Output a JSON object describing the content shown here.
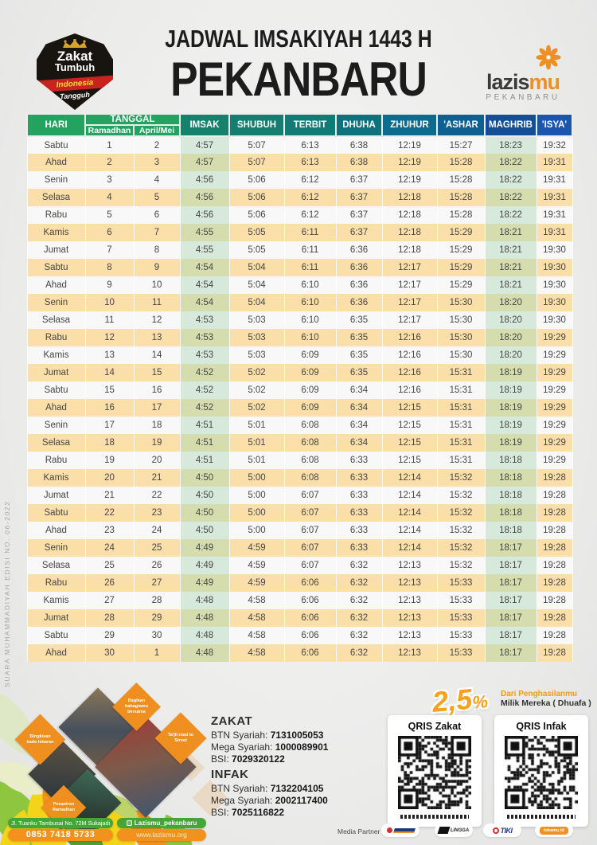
{
  "colors": {
    "header_green": "#23a35f",
    "teal": "#15806f",
    "blue": "#1b55ae",
    "row_peach": "#fbdfa9",
    "tint_green": "#d7e9da",
    "accent_orange": "#f2921d",
    "pill_green": "#44a636"
  },
  "header": {
    "title_line1": "JADWAL IMSAKIYAH 1443 H",
    "title_line2": "PEKANBARU",
    "zakat_badge": {
      "line1": "Zakat",
      "line2": "Tumbuh",
      "ribbon": "Indonesia",
      "line3": "Tangguh"
    },
    "lazismu": {
      "brand_dark": "lazis",
      "brand_orange": "mu",
      "city": "PEKANBARU"
    }
  },
  "table": {
    "col_hari": "HARI",
    "col_tanggal": "TANGGAL",
    "col_ramadhan": "Ramadhan",
    "col_april": "April/Mei",
    "cols_prayer": [
      "IMSAK",
      "SHUBUH",
      "TERBIT",
      "DHUHA",
      "ZHUHUR",
      "'ASHAR",
      "MAGHRIB",
      "'ISYA'"
    ],
    "rows": [
      [
        "Sabtu",
        "1",
        "2",
        "4:57",
        "5:07",
        "6:13",
        "6:38",
        "12:19",
        "15:27",
        "18:23",
        "19:32"
      ],
      [
        "Ahad",
        "2",
        "3",
        "4:57",
        "5:07",
        "6:13",
        "6:38",
        "12:19",
        "15:28",
        "18:22",
        "19:31"
      ],
      [
        "Senin",
        "3",
        "4",
        "4:56",
        "5:06",
        "6:12",
        "6:37",
        "12:19",
        "15:28",
        "18:22",
        "19:31"
      ],
      [
        "Selasa",
        "4",
        "5",
        "4:56",
        "5:06",
        "6:12",
        "6:37",
        "12:18",
        "15:28",
        "18:22",
        "19:31"
      ],
      [
        "Rabu",
        "5",
        "6",
        "4:56",
        "5:06",
        "6:12",
        "6:37",
        "12:18",
        "15:28",
        "18:22",
        "19:31"
      ],
      [
        "Kamis",
        "6",
        "7",
        "4:55",
        "5:05",
        "6:11",
        "6:37",
        "12:18",
        "15:29",
        "18:21",
        "19:31"
      ],
      [
        "Jumat",
        "7",
        "8",
        "4:55",
        "5:05",
        "6:11",
        "6:36",
        "12:18",
        "15:29",
        "18:21",
        "19:30"
      ],
      [
        "Sabtu",
        "8",
        "9",
        "4:54",
        "5:04",
        "6:11",
        "6:36",
        "12:17",
        "15:29",
        "18:21",
        "19:30"
      ],
      [
        "Ahad",
        "9",
        "10",
        "4:54",
        "5:04",
        "6:10",
        "6:36",
        "12:17",
        "15:29",
        "18:21",
        "19:30"
      ],
      [
        "Senin",
        "10",
        "11",
        "4:54",
        "5:04",
        "6:10",
        "6:36",
        "12:17",
        "15:30",
        "18:20",
        "19:30"
      ],
      [
        "Selasa",
        "11",
        "12",
        "4:53",
        "5:03",
        "6:10",
        "6:35",
        "12:17",
        "15:30",
        "18:20",
        "19:30"
      ],
      [
        "Rabu",
        "12",
        "13",
        "4:53",
        "5:03",
        "6:10",
        "6:35",
        "12:16",
        "15:30",
        "18:20",
        "19:29"
      ],
      [
        "Kamis",
        "13",
        "14",
        "4:53",
        "5:03",
        "6:09",
        "6:35",
        "12:16",
        "15:30",
        "18:20",
        "19:29"
      ],
      [
        "Jumat",
        "14",
        "15",
        "4:52",
        "5:02",
        "6:09",
        "6:35",
        "12:16",
        "15:31",
        "18:19",
        "19:29"
      ],
      [
        "Sabtu",
        "15",
        "16",
        "4:52",
        "5:02",
        "6:09",
        "6:34",
        "12:16",
        "15:31",
        "18:19",
        "19:29"
      ],
      [
        "Ahad",
        "16",
        "17",
        "4:52",
        "5:02",
        "6:09",
        "6:34",
        "12:15",
        "15:31",
        "18:19",
        "19:29"
      ],
      [
        "Senin",
        "17",
        "18",
        "4:51",
        "5:01",
        "6:08",
        "6:34",
        "12:15",
        "15:31",
        "18:19",
        "19:29"
      ],
      [
        "Selasa",
        "18",
        "19",
        "4:51",
        "5:01",
        "6:08",
        "6:34",
        "12:15",
        "15:31",
        "18:19",
        "19:29"
      ],
      [
        "Rabu",
        "19",
        "20",
        "4:51",
        "5:01",
        "6:08",
        "6:33",
        "12:15",
        "15:31",
        "18:18",
        "19:29"
      ],
      [
        "Kamis",
        "20",
        "21",
        "4:50",
        "5:00",
        "6:08",
        "6:33",
        "12:14",
        "15:32",
        "18:18",
        "19:28"
      ],
      [
        "Jumat",
        "21",
        "22",
        "4:50",
        "5:00",
        "6:07",
        "6:33",
        "12:14",
        "15:32",
        "18:18",
        "19:28"
      ],
      [
        "Sabtu",
        "22",
        "23",
        "4:50",
        "5:00",
        "6:07",
        "6:33",
        "12:14",
        "15:32",
        "18:18",
        "19:28"
      ],
      [
        "Ahad",
        "23",
        "24",
        "4:50",
        "5:00",
        "6:07",
        "6:33",
        "12:14",
        "15:32",
        "18:18",
        "19:28"
      ],
      [
        "Senin",
        "24",
        "25",
        "4:49",
        "4:59",
        "6:07",
        "6:33",
        "12:14",
        "15:32",
        "18:17",
        "19:28"
      ],
      [
        "Selasa",
        "25",
        "26",
        "4:49",
        "4:59",
        "6:07",
        "6:32",
        "12:13",
        "15:32",
        "18:17",
        "19:28"
      ],
      [
        "Rabu",
        "26",
        "27",
        "4:49",
        "4:59",
        "6:06",
        "6:32",
        "12:13",
        "15:33",
        "18:17",
        "19:28"
      ],
      [
        "Kamis",
        "27",
        "28",
        "4:48",
        "4:58",
        "6:06",
        "6:32",
        "12:13",
        "15:33",
        "18:17",
        "19:28"
      ],
      [
        "Jumat",
        "28",
        "29",
        "4:48",
        "4:58",
        "6:06",
        "6:32",
        "12:13",
        "15:33",
        "18:17",
        "19:28"
      ],
      [
        "Sabtu",
        "29",
        "30",
        "4:48",
        "4:58",
        "6:06",
        "6:32",
        "12:13",
        "15:33",
        "18:17",
        "19:28"
      ],
      [
        "Ahad",
        "30",
        "1",
        "4:48",
        "4:58",
        "6:06",
        "6:32",
        "12:13",
        "15:33",
        "18:17",
        "19:28"
      ]
    ]
  },
  "side_text": "SUARA MUHAMMADIYAH EDISI NO. 06-2022",
  "footer": {
    "program_labels": [
      "Bingkisan kado lebaran",
      "Bagikan bahagiamu bersama",
      "Ta'jil road to Street",
      "Pesantren Ramadhan"
    ],
    "address": "Jl. Tuanku Tambusai No. 72M Sukajadi",
    "phone": "0853 7418 5733",
    "instagram": "Lazismu_pekanbaru",
    "website": "www.lazismu.org",
    "zakat": {
      "title": "ZAKAT",
      "btn_label": "BTN Syariah: ",
      "btn": "7131005053",
      "mega_label": "Mega Syariah: ",
      "mega": "1000089901",
      "bsi_label": "BSI: ",
      "bsi": "7029320122"
    },
    "infak": {
      "title": "INFAK",
      "btn_label": "BTN Syariah: ",
      "btn": "7132204105",
      "mega_label": "Mega Syariah: ",
      "mega": "2002117400",
      "bsi_label": "BSI: ",
      "bsi": "7025116822"
    },
    "percent": "2,5",
    "percent_sign": "%",
    "tagline_orange": "Dari Penghasilanmu",
    "tagline_dark": "Milik Mereka ( Dhuafa )",
    "qris_zakat_title": "QRIS Zakat",
    "qris_infak_title": "QRIS Infak",
    "media_partner_label": "Media Partner :",
    "media_partners": [
      "",
      "LINGGA",
      "TIKI",
      "lokamu.id"
    ]
  }
}
